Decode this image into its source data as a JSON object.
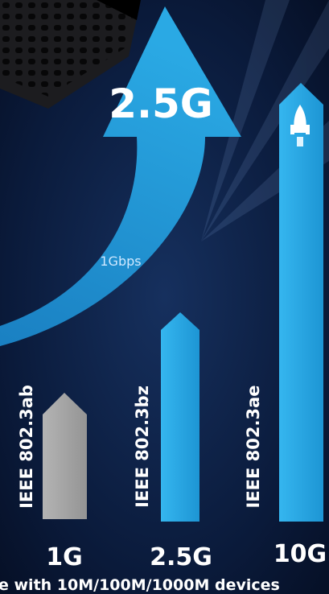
{
  "arrow_label": "2.5G",
  "arrow_caption": "1Gbps",
  "bars": [
    {
      "standard": "IEEE 802.3ab",
      "speed": "1G"
    },
    {
      "standard": "IEEE 802.3bz",
      "speed": "2.5G"
    },
    {
      "standard": "IEEE 802.3ae",
      "speed": "10G"
    }
  ],
  "footer": "e with 10M/100M/1000M devices"
}
